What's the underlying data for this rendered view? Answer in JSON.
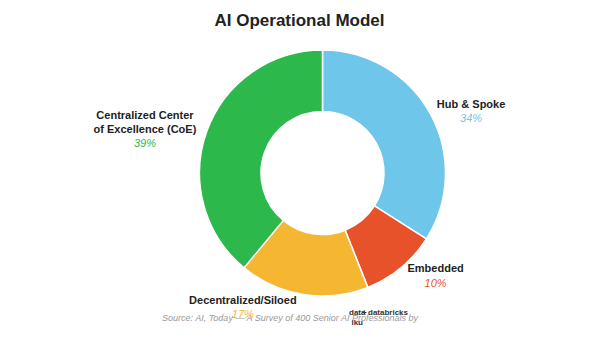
{
  "chart_data": {
    "type": "pie",
    "title": "AI Operational Model",
    "categories": [
      "Hub & Spoke",
      "Embedded",
      "Decentralized/Siloed",
      "Centralized Center\nof Excellence (CoE)"
    ],
    "values": [
      34,
      10,
      17,
      39
    ],
    "value_labels": [
      "34%",
      "10%",
      "17%",
      "39%"
    ],
    "colors": [
      "#6EC6EA",
      "#E8522A",
      "#F5B731",
      "#2DB84B"
    ],
    "data_labels": true,
    "annotations": [
      "Source: AI, Today — A Survey of 400 Senior AI Professionals by",
      "data\niku",
      "+",
      "databricks"
    ]
  }
}
